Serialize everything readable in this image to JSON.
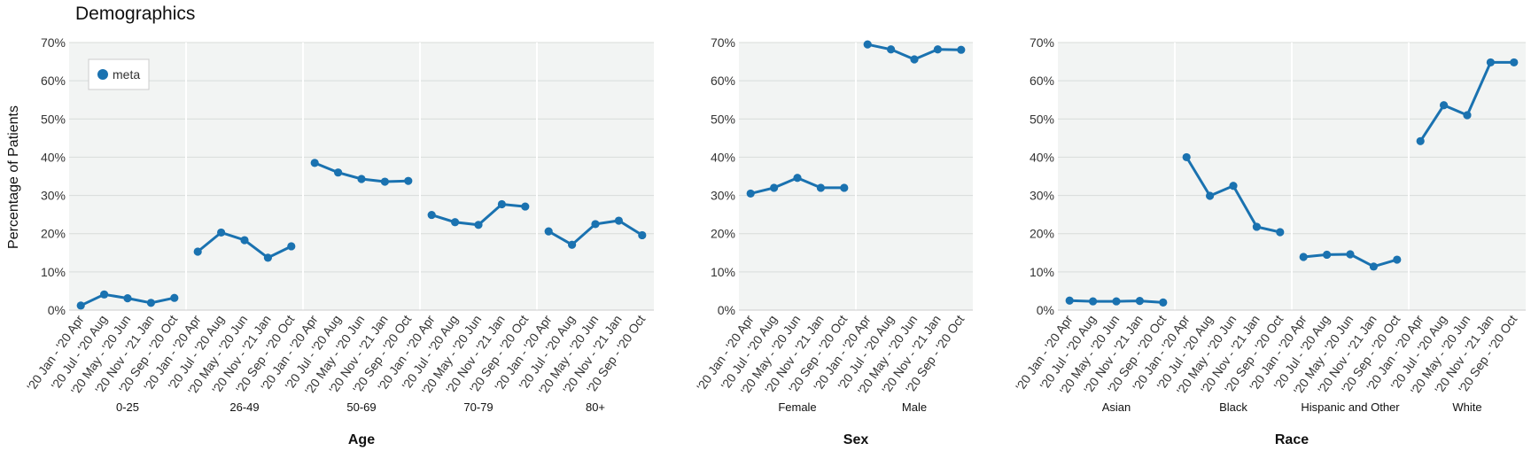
{
  "title": "Demographics",
  "chart_data": {
    "type": "line",
    "ylabel": "Percentage of Patients",
    "ylim": [
      0,
      70
    ],
    "yticks": [
      "0%",
      "10%",
      "20%",
      "30%",
      "40%",
      "50%",
      "60%",
      "70%"
    ],
    "x": [
      "'20 Jan - '20 Apr",
      "'20 Jul - '20 Aug",
      "'20 May - '20 Jun",
      "'20 Nov - '21 Jan",
      "'20 Sep - '20 Oct"
    ],
    "legend": {
      "label": "meta",
      "position": "top-left"
    },
    "color": "#1a72b0",
    "grid": true,
    "panels": [
      {
        "facet": "Age",
        "groups": [
          {
            "name": "0-25",
            "values": [
              1.2,
              4.1,
              3.1,
              1.9,
              3.2
            ]
          },
          {
            "name": "26-49",
            "values": [
              15.3,
              20.3,
              18.3,
              13.7,
              16.7
            ]
          },
          {
            "name": "50-69",
            "values": [
              38.5,
              36.0,
              34.3,
              33.6,
              33.8
            ]
          },
          {
            "name": "70-79",
            "values": [
              24.9,
              23.0,
              22.3,
              27.7,
              27.1
            ]
          },
          {
            "name": "80+",
            "values": [
              20.6,
              17.1,
              22.5,
              23.4,
              19.6
            ]
          }
        ]
      },
      {
        "facet": "Sex",
        "groups": [
          {
            "name": "Female",
            "values": [
              30.5,
              32.0,
              34.6,
              32.0,
              32.0
            ]
          },
          {
            "name": "Male",
            "values": [
              69.5,
              68.2,
              65.6,
              68.2,
              68.1
            ]
          }
        ]
      },
      {
        "facet": "Race",
        "groups": [
          {
            "name": "Asian",
            "values": [
              2.5,
              2.3,
              2.3,
              2.4,
              2.0
            ]
          },
          {
            "name": "Black",
            "values": [
              40.0,
              29.9,
              32.5,
              21.8,
              20.4
            ]
          },
          {
            "name": "Hispanic and Other",
            "values": [
              13.9,
              14.5,
              14.6,
              11.4,
              13.2
            ]
          },
          {
            "name": "White",
            "values": [
              44.2,
              53.6,
              51.0,
              64.8,
              64.8
            ]
          }
        ]
      }
    ]
  }
}
